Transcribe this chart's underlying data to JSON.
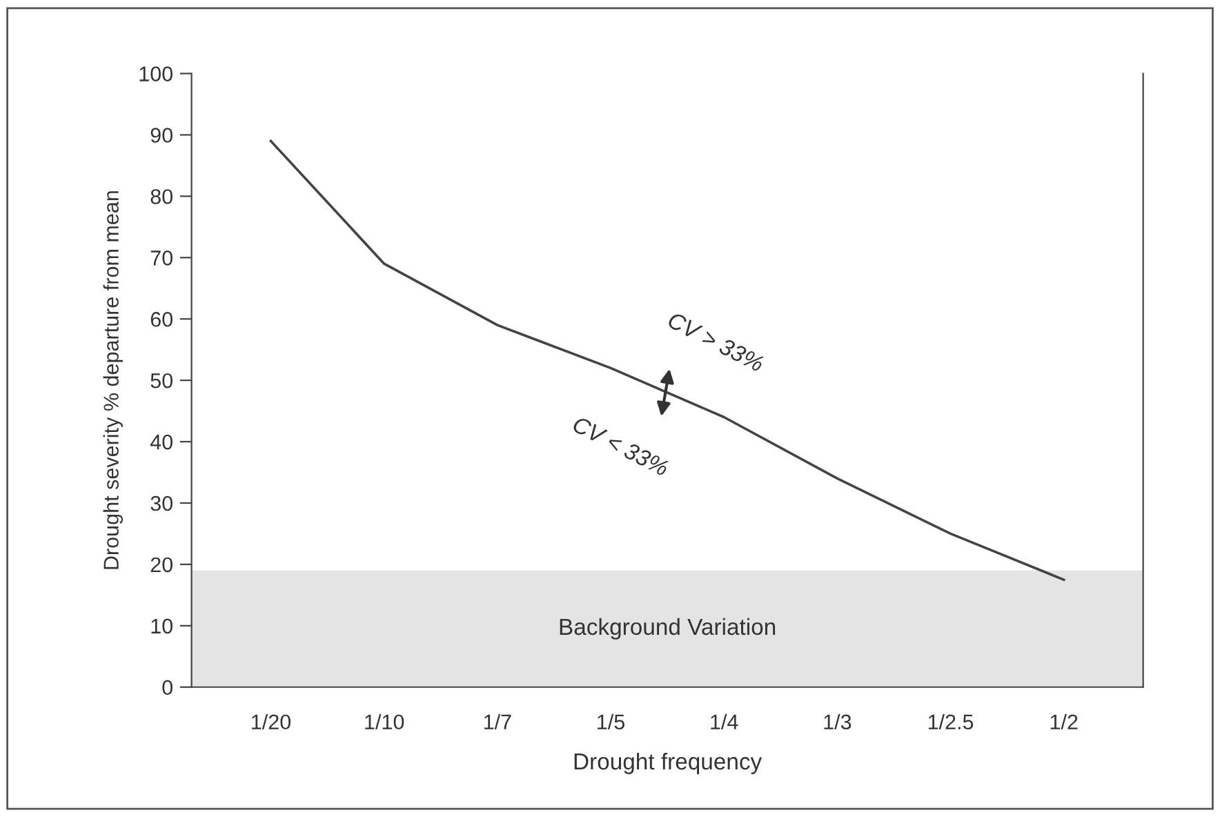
{
  "chart_data": {
    "type": "line",
    "xlabel": "Drought frequency",
    "ylabel": "Drought severity % departure from mean",
    "categories": [
      "1/20",
      "1/10",
      "1/7",
      "1/5",
      "1/4",
      "1/3",
      "1/2.5",
      "1/2"
    ],
    "ylim": [
      0,
      100
    ],
    "yticks": [
      0,
      10,
      20,
      30,
      40,
      50,
      60,
      70,
      80,
      90,
      100
    ],
    "series": [
      {
        "color": "#444444",
        "values": [
          89,
          69,
          59,
          52,
          44,
          34,
          25,
          17.5
        ]
      }
    ],
    "bands": [
      {
        "axis": "y",
        "from": 0,
        "to": 19,
        "label": "Background Variation",
        "color": "#e4e4e4"
      }
    ],
    "annotations": [
      "CV > 33%",
      "CV < 33%"
    ],
    "grid": false,
    "marker": "none",
    "line_style": "solid"
  }
}
